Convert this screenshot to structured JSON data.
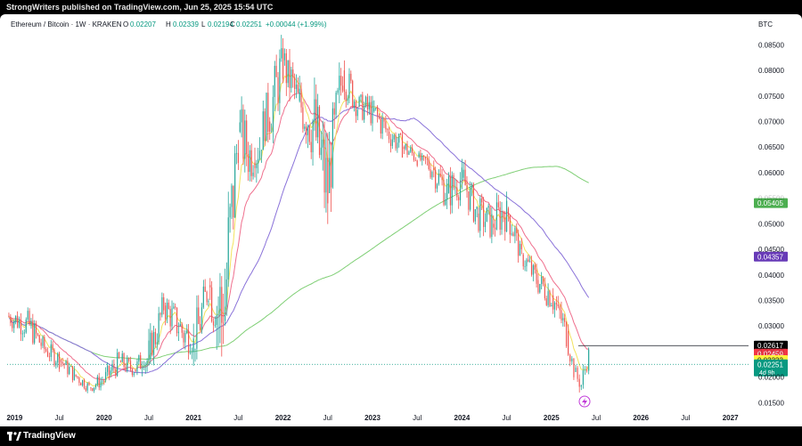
{
  "header": {
    "publish_text": "StrongWriters published on TradingView.com, Jun 25, 2025 15:54 UTC"
  },
  "footer": {
    "brand": "TradingView"
  },
  "legend": {
    "symbol": "Ethereum / Bitcoin · 1W · KRAKEN",
    "o_label": "O",
    "o_value": "0.02207",
    "h_label": "H",
    "h_value": "0.02339",
    "l_label": "L",
    "l_value": "0.02194",
    "c_label": "C",
    "c_value": "0.02251",
    "change": "+0.00044 (+1.99%)"
  },
  "colors": {
    "up": "#26a69a",
    "down": "#ef5350",
    "ema_fast": "#f2e35d",
    "ema_20": "#ef6f8d",
    "ma_50": "#8a72d9",
    "ma_200": "#7fcf75"
  },
  "axis": {
    "currency": "BTC",
    "y_ticks": [
      "0.08500",
      "0.08000",
      "0.07500",
      "0.07000",
      "0.06500",
      "0.06000",
      "0.05500",
      "0.05000",
      "0.04500",
      "0.04000",
      "0.03500",
      "0.03000",
      "0.02500",
      "0.02000",
      "0.01500"
    ],
    "x_ticks": [
      "2019",
      "Jul",
      "2020",
      "Jul",
      "2021",
      "Jul",
      "2022",
      "Jul",
      "2023",
      "Jul",
      "2024",
      "Jul",
      "2025",
      "Jul",
      "2026",
      "Jul",
      "2027"
    ]
  },
  "price_tags": [
    {
      "label": "0.05405",
      "color": "#4caf50",
      "value": 0.05405
    },
    {
      "label": "0.04357",
      "color": "#673ab7",
      "value": 0.04357
    },
    {
      "label": "0.02617",
      "color": "#000000",
      "value": 0.02617
    },
    {
      "label": "0.02459",
      "color": "#f23645",
      "value": 0.02459
    },
    {
      "label": "0.02333",
      "color": "#fff23a",
      "value": 0.02333
    },
    {
      "label": "0.02251",
      "color": "#089981",
      "value": 0.02251,
      "sub": "4d 9h"
    }
  ],
  "chart_data": {
    "type": "candlestick",
    "title": "Ethereum / Bitcoin · 1W · KRAKEN",
    "ylabel": "BTC",
    "ylim": [
      0.0135,
      0.0875
    ],
    "scale": "linear",
    "grid": false,
    "x_range": [
      "2018-12",
      "2027-02"
    ],
    "ohlc_weekly_approx": [
      [
        "2018-12",
        0.032,
        0.035,
        0.029,
        0.03
      ],
      [
        "2019-03",
        0.03,
        0.0335,
        0.025,
        0.0255
      ],
      [
        "2019-05",
        0.0255,
        0.028,
        0.0225,
        0.0235
      ],
      [
        "2019-07",
        0.0235,
        0.0245,
        0.019,
        0.0205
      ],
      [
        "2019-09",
        0.0205,
        0.0215,
        0.0168,
        0.018
      ],
      [
        "2019-11",
        0.018,
        0.02,
        0.017,
        0.0195
      ],
      [
        "2020-01",
        0.0195,
        0.024,
        0.0185,
        0.023
      ],
      [
        "2020-03",
        0.023,
        0.0265,
        0.02,
        0.0215
      ],
      [
        "2020-05",
        0.0215,
        0.025,
        0.0205,
        0.0235
      ],
      [
        "2020-07",
        0.0235,
        0.0365,
        0.023,
        0.034
      ],
      [
        "2020-09",
        0.034,
        0.037,
        0.029,
        0.03
      ],
      [
        "2020-11",
        0.03,
        0.0345,
        0.024,
        0.0255
      ],
      [
        "2021-01",
        0.0255,
        0.042,
        0.025,
        0.038
      ],
      [
        "2021-03",
        0.038,
        0.04,
        0.03,
        0.031
      ],
      [
        "2021-05",
        0.031,
        0.082,
        0.0305,
        0.068
      ],
      [
        "2021-07",
        0.068,
        0.072,
        0.054,
        0.062
      ],
      [
        "2021-09",
        0.062,
        0.076,
        0.06,
        0.07
      ],
      [
        "2021-11",
        0.07,
        0.087,
        0.068,
        0.082
      ],
      [
        "2022-01",
        0.082,
        0.084,
        0.068,
        0.074
      ],
      [
        "2022-03",
        0.074,
        0.078,
        0.065,
        0.07
      ],
      [
        "2022-05",
        0.07,
        0.076,
        0.052,
        0.056
      ],
      [
        "2022-07",
        0.056,
        0.085,
        0.054,
        0.08
      ],
      [
        "2022-09",
        0.08,
        0.082,
        0.068,
        0.073
      ],
      [
        "2022-11",
        0.073,
        0.076,
        0.069,
        0.072
      ],
      [
        "2023-01",
        0.072,
        0.074,
        0.065,
        0.068
      ],
      [
        "2023-03",
        0.068,
        0.071,
        0.063,
        0.065
      ],
      [
        "2023-05",
        0.065,
        0.067,
        0.061,
        0.063
      ],
      [
        "2023-07",
        0.063,
        0.064,
        0.059,
        0.061
      ],
      [
        "2023-09",
        0.061,
        0.062,
        0.054,
        0.056
      ],
      [
        "2023-11",
        0.056,
        0.062,
        0.051,
        0.059
      ],
      [
        "2024-01",
        0.059,
        0.061,
        0.05,
        0.052
      ],
      [
        "2024-03",
        0.052,
        0.058,
        0.048,
        0.05
      ],
      [
        "2024-05",
        0.05,
        0.056,
        0.046,
        0.053
      ],
      [
        "2024-07",
        0.053,
        0.0545,
        0.042,
        0.044
      ],
      [
        "2024-09",
        0.044,
        0.045,
        0.038,
        0.039
      ],
      [
        "2024-11",
        0.039,
        0.041,
        0.033,
        0.036
      ],
      [
        "2025-01",
        0.036,
        0.037,
        0.028,
        0.029
      ],
      [
        "2025-03",
        0.029,
        0.03,
        0.02,
        0.021
      ],
      [
        "2025-04",
        0.021,
        0.0215,
        0.0176,
        0.0185
      ],
      [
        "2025-05",
        0.0185,
        0.026,
        0.0183,
        0.0245
      ],
      [
        "2025-06",
        0.0245,
        0.0262,
        0.0219,
        0.0225
      ]
    ]
  }
}
